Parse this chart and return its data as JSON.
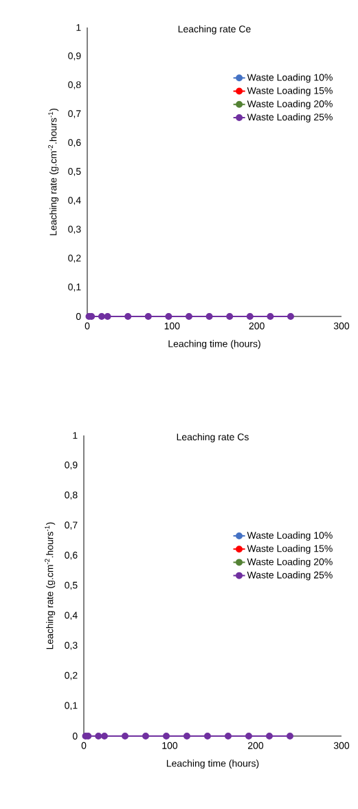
{
  "chart_data": [
    {
      "type": "line",
      "title": "Leaching rate Ce",
      "xlabel": "Leaching time (hours)",
      "ylabel": "Leaching rate (g.cm$^{-2}$.hours$^{-1}$)",
      "x": [
        2,
        5,
        17,
        24,
        48,
        72,
        96,
        120,
        144,
        168,
        192,
        216,
        240
      ],
      "series": [
        {
          "name": "Waste Loading 10%",
          "color": "#4472c4",
          "values": [
            null,
            null,
            null,
            null,
            null,
            null,
            null,
            null,
            null,
            null,
            null,
            null,
            null
          ]
        },
        {
          "name": "Waste Loading 15%",
          "color": "#ff0000",
          "values": [
            null,
            null,
            null,
            null,
            null,
            null,
            null,
            null,
            null,
            null,
            null,
            null,
            null
          ]
        },
        {
          "name": "Waste Loading 20%",
          "color": "#548235",
          "values": [
            null,
            null,
            null,
            null,
            null,
            null,
            null,
            null,
            null,
            null,
            null,
            null,
            null
          ]
        },
        {
          "name": "Waste Loading 25%",
          "color": "#7030a0",
          "values": [
            0,
            0,
            0,
            0,
            0,
            0,
            0,
            0,
            0,
            0,
            0,
            0,
            0
          ]
        }
      ],
      "xlim": [
        0,
        300
      ],
      "xticks": [
        0,
        100,
        200,
        300
      ],
      "ylim": [
        0,
        1
      ],
      "yticks": [
        0,
        {
          "value": 0.1,
          "label": "0,1"
        },
        {
          "value": 0.2,
          "label": "0,2"
        },
        {
          "value": 0.3,
          "label": "0,3"
        },
        {
          "value": 0.4,
          "label": "0,4"
        },
        {
          "value": 0.5,
          "label": "0,5"
        },
        {
          "value": 0.6,
          "label": "0,6"
        },
        {
          "value": 0.7,
          "label": "0,7"
        },
        {
          "value": 0.8,
          "label": "0,8"
        },
        {
          "value": 0.9,
          "label": "0,9"
        },
        1
      ],
      "legend": "top right",
      "marker": "circle"
    },
    {
      "type": "line",
      "title": "Leaching rate Cs",
      "xlabel": "Leaching time (hours)",
      "ylabel": "Leaching rate (g.cm$^{-2}$.hours$^{-1}$)",
      "x": [
        2,
        5,
        17,
        24,
        48,
        72,
        96,
        120,
        144,
        168,
        192,
        216,
        240
      ],
      "series": [
        {
          "name": "Waste Loading 10%",
          "color": "#4472c4",
          "values": [
            null,
            null,
            null,
            null,
            null,
            null,
            null,
            null,
            null,
            null,
            null,
            null,
            null
          ]
        },
        {
          "name": "Waste Loading 15%",
          "color": "#ff0000",
          "values": [
            null,
            null,
            null,
            null,
            null,
            null,
            null,
            null,
            null,
            null,
            null,
            null,
            null
          ]
        },
        {
          "name": "Waste Loading 20%",
          "color": "#548235",
          "values": [
            null,
            null,
            null,
            null,
            null,
            null,
            null,
            null,
            null,
            null,
            null,
            null,
            null
          ]
        },
        {
          "name": "Waste Loading 25%",
          "color": "#7030a0",
          "values": [
            0,
            0,
            0,
            0,
            0,
            0,
            0,
            0,
            0,
            0,
            0,
            0,
            0
          ]
        }
      ],
      "xlim": [
        0,
        300
      ],
      "xticks": [
        0,
        100,
        200,
        300
      ],
      "ylim": [
        0,
        1
      ],
      "yticks": [
        0,
        {
          "value": 0.1,
          "label": "0,1"
        },
        {
          "value": 0.2,
          "label": "0,2"
        },
        {
          "value": 0.3,
          "label": "0,3"
        },
        {
          "value": 0.4,
          "label": "0,4"
        },
        {
          "value": 0.5,
          "label": "0,5"
        },
        {
          "value": 0.6,
          "label": "0,6"
        },
        {
          "value": 0.7,
          "label": "0,7"
        },
        {
          "value": 0.8,
          "label": "0,8"
        },
        {
          "value": 0.9,
          "label": "0,9"
        },
        1
      ],
      "legend": "right",
      "marker": "circle"
    }
  ]
}
